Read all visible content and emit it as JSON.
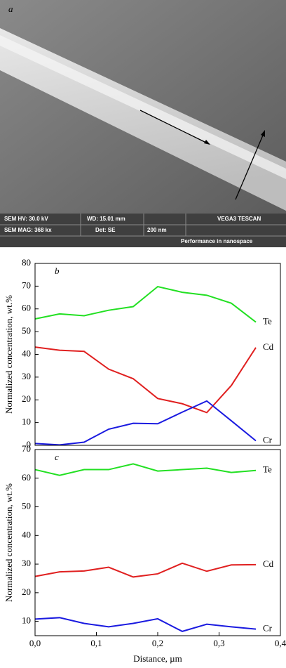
{
  "panel_a": {
    "label": "a",
    "info": [
      "SEM HV: 30.0 kV",
      "WD: 15.01 mm",
      "VEGA3 TESCAN",
      "SEM MAG: 368 kx",
      "Det: SE",
      "200 nm",
      "Performance in nanospace"
    ]
  },
  "chart_data": [
    {
      "type": "line",
      "panel": "b",
      "y_label": "Normalized concentration, wt.%",
      "x": [
        0,
        0.04,
        0.08,
        0.12,
        0.16,
        0.2,
        0.24,
        0.28,
        0.32,
        0.36
      ],
      "xlim": [
        0,
        0.4
      ],
      "ylim": [
        0,
        80
      ],
      "yticks": [
        0,
        10,
        20,
        30,
        40,
        50,
        60,
        70,
        80
      ],
      "series": [
        {
          "name": "Te",
          "color": "#22e022",
          "values": [
            55.6,
            57.8,
            57,
            59.4,
            61,
            69.8,
            67.3,
            66,
            62.5,
            54.2
          ]
        },
        {
          "name": "Cd",
          "color": "#e02020",
          "values": [
            43.2,
            41.8,
            41.3,
            33.5,
            29.3,
            20.6,
            18.3,
            14.4,
            26.3,
            43
          ]
        },
        {
          "name": "Cr",
          "color": "#1a1ae0",
          "values": [
            0.8,
            0.2,
            1.4,
            7.1,
            9.7,
            9.5,
            14.6,
            19.5,
            10.8,
            2
          ]
        }
      ]
    },
    {
      "type": "line",
      "panel": "c",
      "y_label": "Normalized concentration, wt.%",
      "x_label": "Distance, µm",
      "x": [
        0,
        0.04,
        0.08,
        0.12,
        0.16,
        0.2,
        0.24,
        0.28,
        0.32,
        0.36
      ],
      "xlim": [
        0,
        0.4
      ],
      "xticks": [
        {
          "value": 0,
          "label": "0,0"
        },
        {
          "value": 0.1,
          "label": "0,1"
        },
        {
          "value": 0.2,
          "label": "0,2"
        },
        {
          "value": 0.3,
          "label": "0,3"
        },
        {
          "value": 0.4,
          "label": "0,4"
        }
      ],
      "ylim": [
        5,
        70
      ],
      "yticks": [
        10,
        20,
        30,
        40,
        50,
        60,
        70
      ],
      "series": [
        {
          "name": "Te",
          "color": "#22e022",
          "values": [
            63,
            61,
            63,
            63,
            65,
            62.5,
            63,
            63.5,
            62,
            62.7
          ]
        },
        {
          "name": "Cd",
          "color": "#e02020",
          "values": [
            25.7,
            27.3,
            27.6,
            28.9,
            25.5,
            26.6,
            30.3,
            27.5,
            29.7,
            29.8
          ]
        },
        {
          "name": "Cr",
          "color": "#1a1ae0",
          "values": [
            10.8,
            11.3,
            9.3,
            8.1,
            9.3,
            10.9,
            6.5,
            9,
            8.1,
            7.3
          ]
        }
      ]
    }
  ]
}
